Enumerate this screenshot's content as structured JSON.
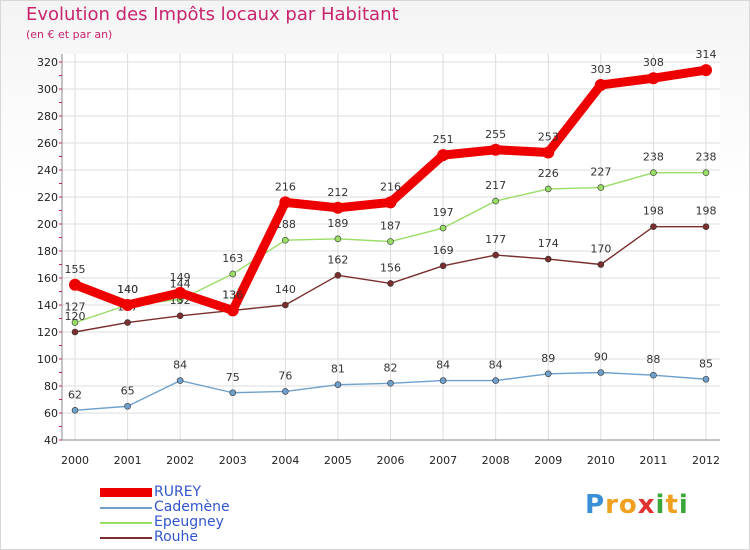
{
  "header": {
    "title": "Evolution des Impôts locaux par Habitant",
    "subtitle": "(en € et par an)"
  },
  "logo": {
    "letters": [
      "P",
      "r",
      "o",
      "x",
      "i",
      "t",
      "i"
    ],
    "colors": [
      "#3a8fd6",
      "#f0a020",
      "#f0a020",
      "#e03030",
      "#39a838",
      "#f0a020",
      "#39a838"
    ]
  },
  "chart_data": {
    "type": "line",
    "title": "Evolution des Impôts locaux par Habitant",
    "subtitle": "(en € et par an)",
    "xlabel": "",
    "ylabel": "",
    "x": [
      "2000",
      "2001",
      "2002",
      "2003",
      "2004",
      "2005",
      "2006",
      "2007",
      "2008",
      "2009",
      "2010",
      "2011",
      "2012"
    ],
    "ylim": [
      40,
      320
    ],
    "yticks": [
      40,
      60,
      80,
      100,
      120,
      140,
      160,
      180,
      200,
      220,
      240,
      260,
      280,
      300,
      320
    ],
    "grid": true,
    "legend_position": "bottom-left",
    "series": [
      {
        "name": "RUREY",
        "color": "#ee0000",
        "values": [
          155,
          140,
          149,
          136,
          216,
          212,
          216,
          251,
          255,
          253,
          303,
          308,
          314
        ],
        "width": "thick"
      },
      {
        "name": "Cademène",
        "color": "#6fa0cc",
        "values": [
          62,
          65,
          84,
          75,
          76,
          81,
          82,
          84,
          84,
          89,
          90,
          88,
          85
        ],
        "width": "thin"
      },
      {
        "name": "Epeugney",
        "color": "#99dd66",
        "values": [
          127,
          140,
          144,
          163,
          188,
          189,
          187,
          197,
          217,
          226,
          227,
          238,
          238
        ],
        "width": "thin"
      },
      {
        "name": "Rouhe",
        "color": "#7a2e2e",
        "values": [
          120,
          127,
          132,
          136,
          140,
          162,
          156,
          169,
          177,
          174,
          170,
          198,
          198
        ],
        "width": "thin"
      }
    ]
  }
}
